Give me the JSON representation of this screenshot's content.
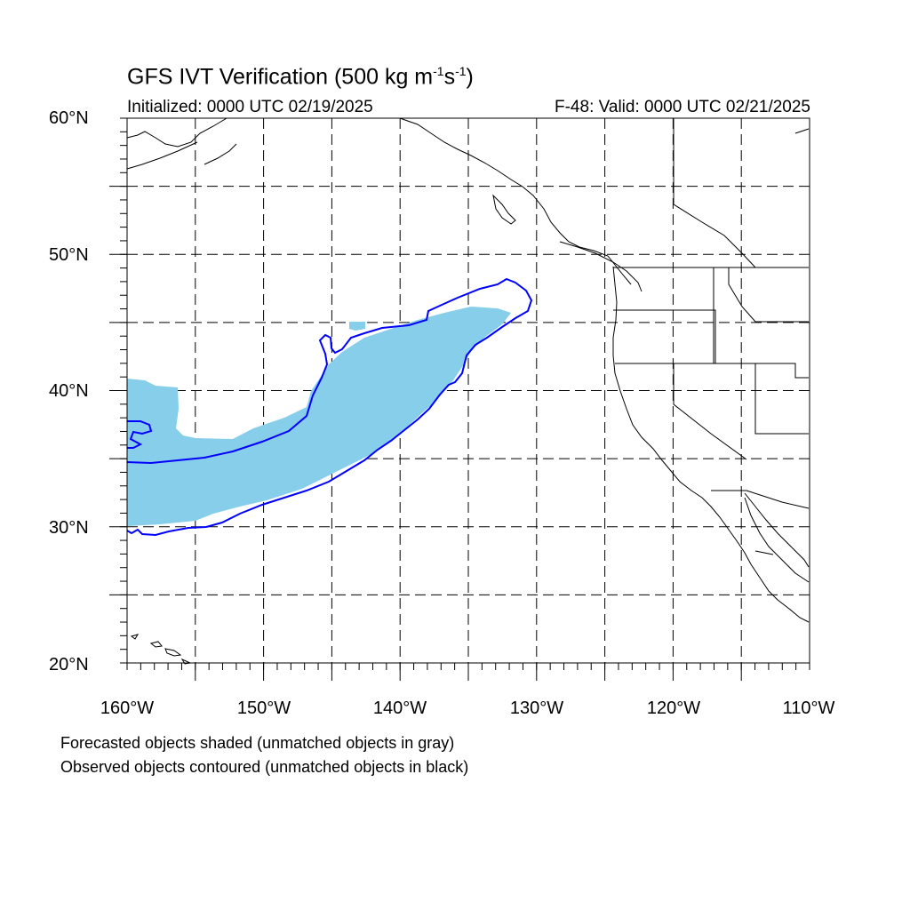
{
  "title": {
    "prefix": "GFS IVT Verification (500 kg m",
    "exp1": "-1",
    "mid": "s",
    "exp2": "-1",
    "suffix": ")"
  },
  "initialized": "Initialized: 0000 UTC 02/19/2025",
  "valid": "F-48: Valid: 0000 UTC 02/21/2025",
  "lat_labels": [
    "60°N",
    "50°N",
    "40°N",
    "30°N",
    "20°N"
  ],
  "lon_labels": [
    "160°W",
    "150°W",
    "140°W",
    "130°W",
    "120°W",
    "110°W"
  ],
  "legend": {
    "line1": "Forecasted objects shaded (unmatched objects in gray)",
    "line2": "Observed objects contoured (unmatched objects in black)"
  },
  "colors": {
    "forecast_fill": "#87ceeb",
    "observed_contour": "#0000ff",
    "coastline": "#000000",
    "grid": "#000000"
  },
  "map": {
    "projection": "cylindrical equidistant",
    "lon_range": [
      -160,
      -110
    ],
    "lat_range": [
      20,
      60
    ],
    "grid_spacing_deg": 5
  }
}
